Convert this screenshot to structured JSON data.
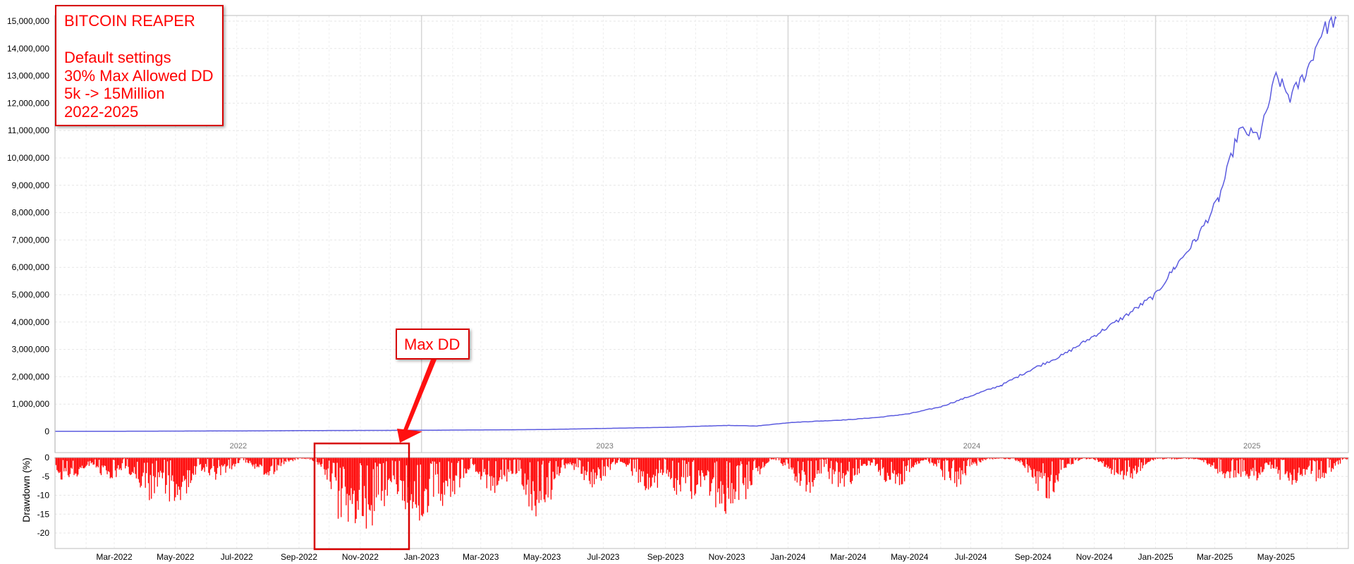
{
  "chart_data": [
    {
      "type": "line",
      "series": [
        {
          "color": "#5b5bdf",
          "points": [
            [
              "2022-01-01",
              5000
            ],
            [
              "2022-04-01",
              10000
            ],
            [
              "2022-07-01",
              20000
            ],
            [
              "2022-10-01",
              35000
            ],
            [
              "2022-12-01",
              40000
            ],
            [
              "2023-03-01",
              55000
            ],
            [
              "2023-05-01",
              70000
            ],
            [
              "2023-07-01",
              110000
            ],
            [
              "2023-09-01",
              150000
            ],
            [
              "2023-11-01",
              220000
            ],
            [
              "2023-12-01",
              200000
            ],
            [
              "2024-01-01",
              320000
            ],
            [
              "2024-02-01",
              380000
            ],
            [
              "2024-03-01",
              430000
            ],
            [
              "2024-04-01",
              520000
            ],
            [
              "2024-05-01",
              650000
            ],
            [
              "2024-06-01",
              900000
            ],
            [
              "2024-07-01",
              1300000
            ],
            [
              "2024-08-01",
              1700000
            ],
            [
              "2024-09-01",
              2300000
            ],
            [
              "2024-10-01",
              2800000
            ],
            [
              "2024-11-01",
              3500000
            ],
            [
              "2024-12-01",
              4200000
            ],
            [
              "2025-01-01",
              5000000
            ],
            [
              "2025-01-20",
              6000000
            ],
            [
              "2025-02-10",
              7000000
            ],
            [
              "2025-03-05",
              8500000
            ],
            [
              "2025-03-25",
              11000000
            ],
            [
              "2025-04-15",
              10800000
            ],
            [
              "2025-05-01",
              13000000
            ],
            [
              "2025-05-15",
              12200000
            ],
            [
              "2025-06-01",
              13200000
            ],
            [
              "2025-06-15",
              14600000
            ],
            [
              "2025-06-30",
              15100000
            ]
          ]
        }
      ],
      "ylim": [
        0,
        15500000
      ],
      "y_ticks": [
        "0",
        "1,000,000",
        "2,000,000",
        "3,000,000",
        "4,000,000",
        "5,000,000",
        "6,000,000",
        "7,000,000",
        "8,000,000",
        "9,000,000",
        "10,000,000",
        "11,000,000",
        "12,000,000",
        "13,000,000",
        "14,000,000",
        "15,000,000"
      ],
      "year_labels": [
        "2022",
        "2023",
        "2024",
        "2025"
      ],
      "grid": true
    },
    {
      "type": "bar",
      "color": "#ff0000",
      "ylabel": "Drawdown (%)",
      "ylim": [
        -23,
        0
      ],
      "y_ticks": [
        "0",
        "-5",
        "-10",
        "-15",
        "-20"
      ],
      "x_ticks": [
        "Mar-2022",
        "May-2022",
        "Jul-2022",
        "Sep-2022",
        "Nov-2022",
        "Jan-2023",
        "Mar-2023",
        "May-2023",
        "Jul-2023",
        "Sep-2023",
        "Nov-2023",
        "Jan-2024",
        "Mar-2024",
        "May-2024",
        "Jul-2024",
        "Sep-2024",
        "Nov-2024",
        "Jan-2025",
        "Mar-2025",
        "May-2025"
      ],
      "troughs": [
        [
          "2022-01-15",
          -7
        ],
        [
          "2022-02-25",
          -6
        ],
        [
          "2022-04-05",
          -12
        ],
        [
          "2022-05-01",
          -13
        ],
        [
          "2022-06-10",
          -6
        ],
        [
          "2022-08-01",
          -5
        ],
        [
          "2022-10-20",
          -22
        ],
        [
          "2022-11-12",
          -21
        ],
        [
          "2022-12-20",
          -15
        ],
        [
          "2022-12-31",
          -17
        ],
        [
          "2023-01-25",
          -14
        ],
        [
          "2023-03-15",
          -10
        ],
        [
          "2023-04-28",
          -17
        ],
        [
          "2023-06-20",
          -8
        ],
        [
          "2023-08-15",
          -10
        ],
        [
          "2023-09-22",
          -13
        ],
        [
          "2023-10-28",
          -16
        ],
        [
          "2023-11-12",
          -16
        ],
        [
          "2024-01-20",
          -10
        ],
        [
          "2024-02-25",
          -10
        ],
        [
          "2024-04-15",
          -9
        ],
        [
          "2024-06-15",
          -8
        ],
        [
          "2024-09-15",
          -11
        ],
        [
          "2024-12-01",
          -7
        ],
        [
          "2025-03-15",
          -6
        ],
        [
          "2025-04-05",
          -7
        ],
        [
          "2025-05-15",
          -8
        ],
        [
          "2025-06-10",
          -7
        ]
      ]
    }
  ],
  "annotations": {
    "title_box": [
      "BITCOIN REAPER",
      "",
      "Default settings",
      "30% Max Allowed DD",
      "5k -> 15Million",
      "2022-2025"
    ],
    "max_dd_label": "Max DD"
  }
}
